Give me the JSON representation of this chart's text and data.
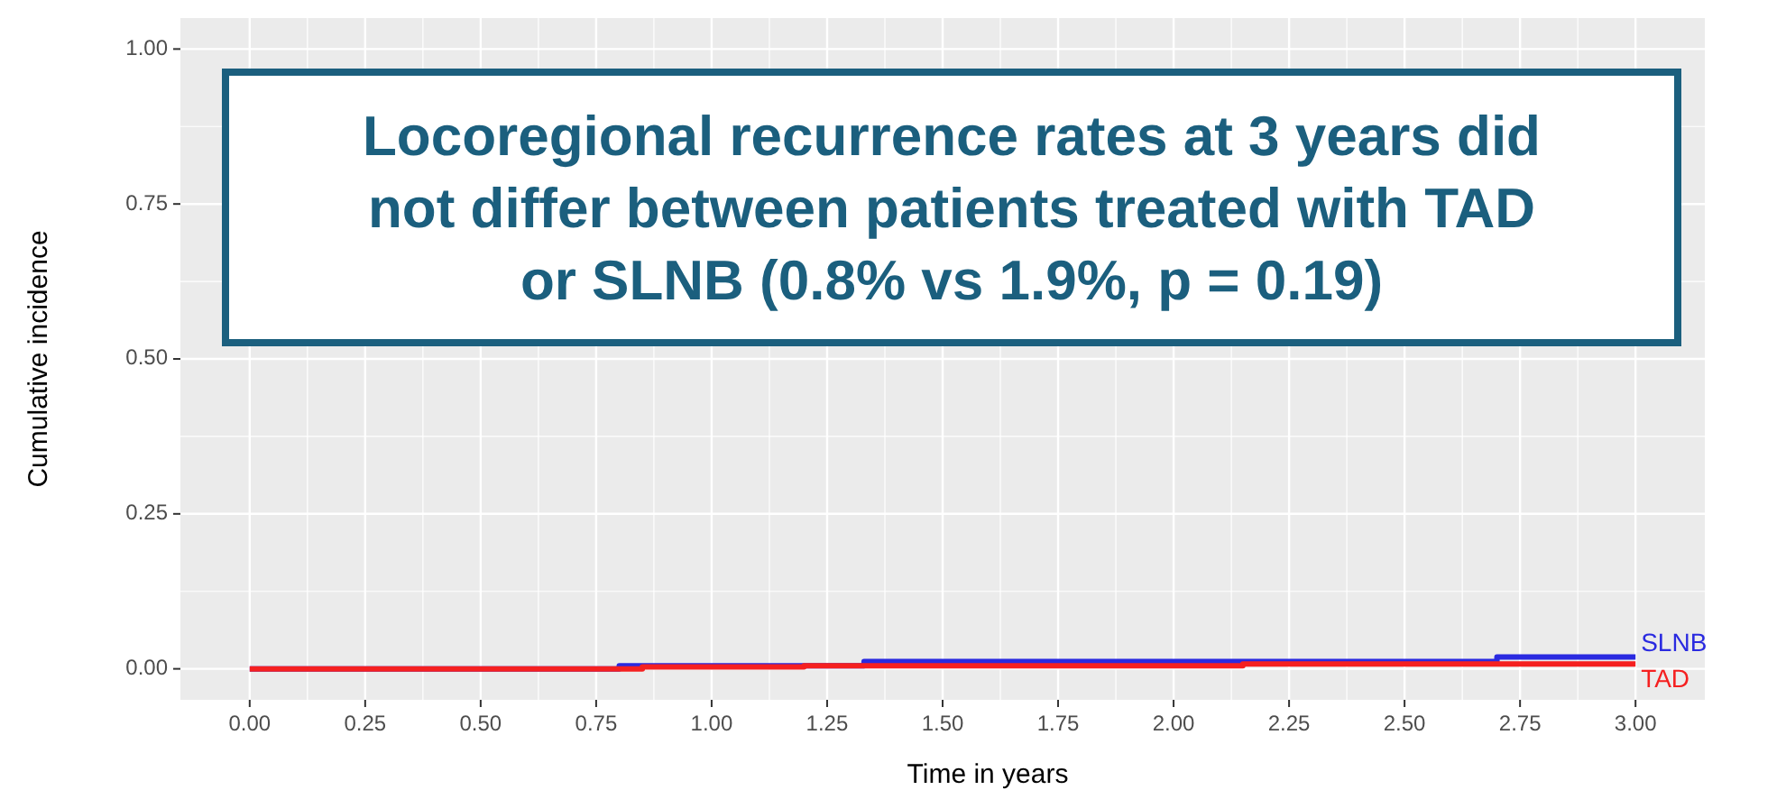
{
  "chart_data": {
    "type": "step",
    "xlabel": "Time in years",
    "ylabel": "Cumulative incidence",
    "annotations": [
      "Locoregional recurrence rates at 3 years did not differ between patients treated with TAD or SLNB (0.8% vs 1.9%, p = 0.19)"
    ],
    "series": [
      {
        "name": "SLNB",
        "color": "#2a2ae0",
        "x": [
          0,
          0.8,
          1.33,
          2.7,
          3.0
        ],
        "values": [
          0,
          0.005,
          0.012,
          0.019,
          0.019
        ]
      },
      {
        "name": "TAD",
        "color": "#f52020",
        "x": [
          0,
          0.85,
          1.2,
          2.15,
          3.0
        ],
        "values": [
          0,
          0.003,
          0.005,
          0.008,
          0.008
        ]
      }
    ],
    "xlim": [
      -0.15,
      3.15
    ],
    "ylim": [
      -0.05,
      1.05
    ],
    "xticks": [
      {
        "value": 0,
        "label": "0.00"
      },
      {
        "value": 0.25,
        "label": "0.25"
      },
      {
        "value": 0.5,
        "label": "0.50"
      },
      {
        "value": 0.75,
        "label": "0.75"
      },
      {
        "value": 1,
        "label": "1.00"
      },
      {
        "value": 1.25,
        "label": "1.25"
      },
      {
        "value": 1.5,
        "label": "1.50"
      },
      {
        "value": 1.75,
        "label": "1.75"
      },
      {
        "value": 2,
        "label": "2.00"
      },
      {
        "value": 2.25,
        "label": "2.25"
      },
      {
        "value": 2.5,
        "label": "2.50"
      },
      {
        "value": 2.75,
        "label": "2.75"
      },
      {
        "value": 3,
        "label": "3.00"
      }
    ],
    "yticks": [
      {
        "value": 0,
        "label": "0.00"
      },
      {
        "value": 0.25,
        "label": "0.25"
      },
      {
        "value": 0.5,
        "label": "0.50"
      },
      {
        "value": 0.75,
        "label": "0.75"
      },
      {
        "value": 1,
        "label": "1.00"
      }
    ],
    "grid": true
  }
}
